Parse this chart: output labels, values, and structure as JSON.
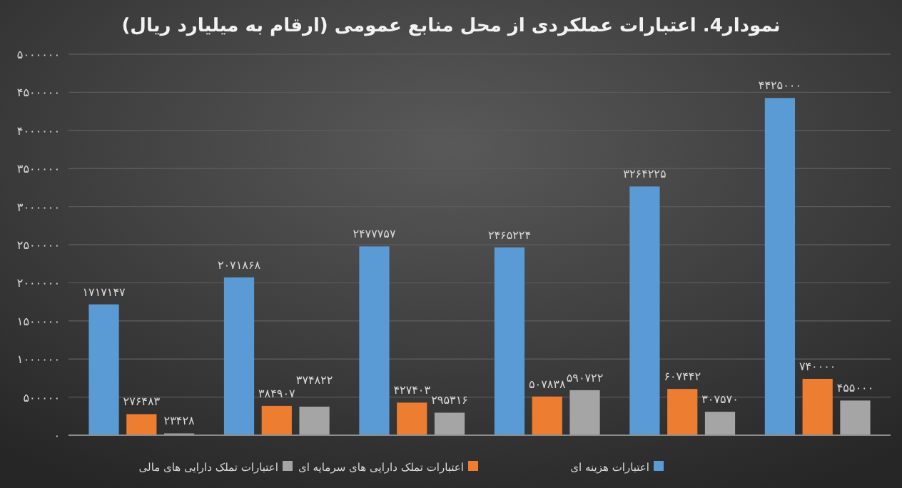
{
  "chart_data": {
    "type": "bar",
    "title": "نمودار4. اعتبارات عملکردی از محل منابع عمومی (ارقام به میلیارد ریال)",
    "categories": [
      null,
      null,
      null,
      null,
      null,
      null
    ],
    "series": [
      {
        "name": "اعتبارات هزینه ای",
        "color": "#5b9bd5",
        "values": [
          1717147,
          2071868,
          2477757,
          2465224,
          3264225,
          4425000
        ],
        "value_labels": [
          "۱۷۱۷۱۴۷",
          "۲۰۷۱۸۶۸",
          "۲۴۷۷۷۵۷",
          "۲۴۶۵۲۲۴",
          "۳۲۶۴۲۲۵",
          "۴۴۲۵۰۰۰"
        ]
      },
      {
        "name": "اعتبارات تملک دارایی های سرمایه ای",
        "color": "#ed7d31",
        "values": [
          276483,
          384907,
          427403,
          507838,
          607442,
          740000
        ],
        "value_labels": [
          "۲۷۶۴۸۳",
          "۳۸۴۹۰۷",
          "۴۲۷۴۰۳",
          "۵۰۷۸۳۸",
          "۶۰۷۴۴۲",
          "۷۴۰۰۰۰"
        ]
      },
      {
        "name": "اعتبارات تملک دارایی های مالی",
        "color": "#a5a5a5",
        "values": [
          23428,
          374822,
          295316,
          590722,
          307570,
          455000
        ],
        "value_labels": [
          "۲۳۴۲۸",
          "۳۷۴۸۲۲",
          "۲۹۵۳۱۶",
          "۵۹۰۷۲۲",
          "۳۰۷۵۷۰",
          "۴۵۵۰۰۰"
        ]
      }
    ],
    "ylim": [
      0,
      5000000
    ],
    "yticks": [
      {
        "value": 0,
        "label": "۰"
      },
      {
        "value": 500000,
        "label": "۵۰۰۰۰۰"
      },
      {
        "value": 1000000,
        "label": "۱۰۰۰۰۰۰"
      },
      {
        "value": 1500000,
        "label": "۱۵۰۰۰۰۰"
      },
      {
        "value": 2000000,
        "label": "۲۰۰۰۰۰۰"
      },
      {
        "value": 2500000,
        "label": "۲۵۰۰۰۰۰"
      },
      {
        "value": 3000000,
        "label": "۳۰۰۰۰۰۰"
      },
      {
        "value": 3500000,
        "label": "۳۵۰۰۰۰۰"
      },
      {
        "value": 4000000,
        "label": "۴۰۰۰۰۰۰"
      },
      {
        "value": 4500000,
        "label": "۴۵۰۰۰۰۰"
      },
      {
        "value": 5000000,
        "label": "۵۰۰۰۰۰۰"
      }
    ],
    "grid": "y",
    "legend": "bottom"
  }
}
